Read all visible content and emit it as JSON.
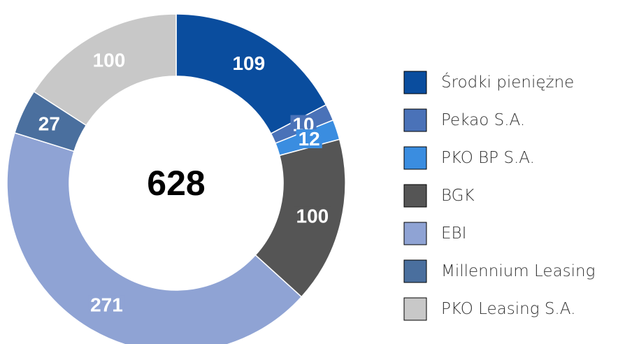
{
  "chart_data": {
    "type": "donut",
    "categories": [
      "Środki pieniężne",
      "Pekao S.A.",
      "PKO BP S.A.",
      "BGK",
      "EBI",
      "Millennium Leasing",
      "PKO Leasing S.A."
    ],
    "values": [
      109,
      10,
      12,
      100,
      271,
      27,
      100
    ],
    "colors": [
      "#0a4d9e",
      "#4a72b8",
      "#3a8de0",
      "#555555",
      "#8fa3d4",
      "#4a6f9e",
      "#c8c8c8"
    ],
    "total": 628,
    "legend": "right"
  }
}
